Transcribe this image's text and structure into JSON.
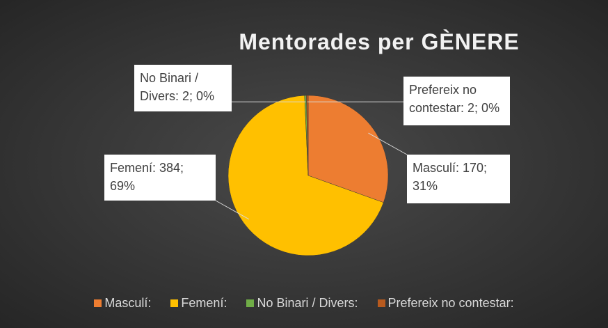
{
  "chart_data": {
    "type": "pie",
    "title": "Mentorades per GÈNERE",
    "categories": [
      "Masculí:",
      "Femení:",
      "No Binari / Divers:",
      "Prefereix no contestar:"
    ],
    "values": [
      170,
      384,
      2,
      2
    ],
    "value_labels": [
      "Masculí: 170; 31%",
      "Femení: 384; 69%",
      "No Binari / Divers: 2; 0%",
      "Prefereix no contestar: 2; 0%"
    ],
    "colors": [
      "#ED7D31",
      "#FFC000",
      "#70AD47",
      "#B85A1E"
    ],
    "legend": "bottom"
  }
}
